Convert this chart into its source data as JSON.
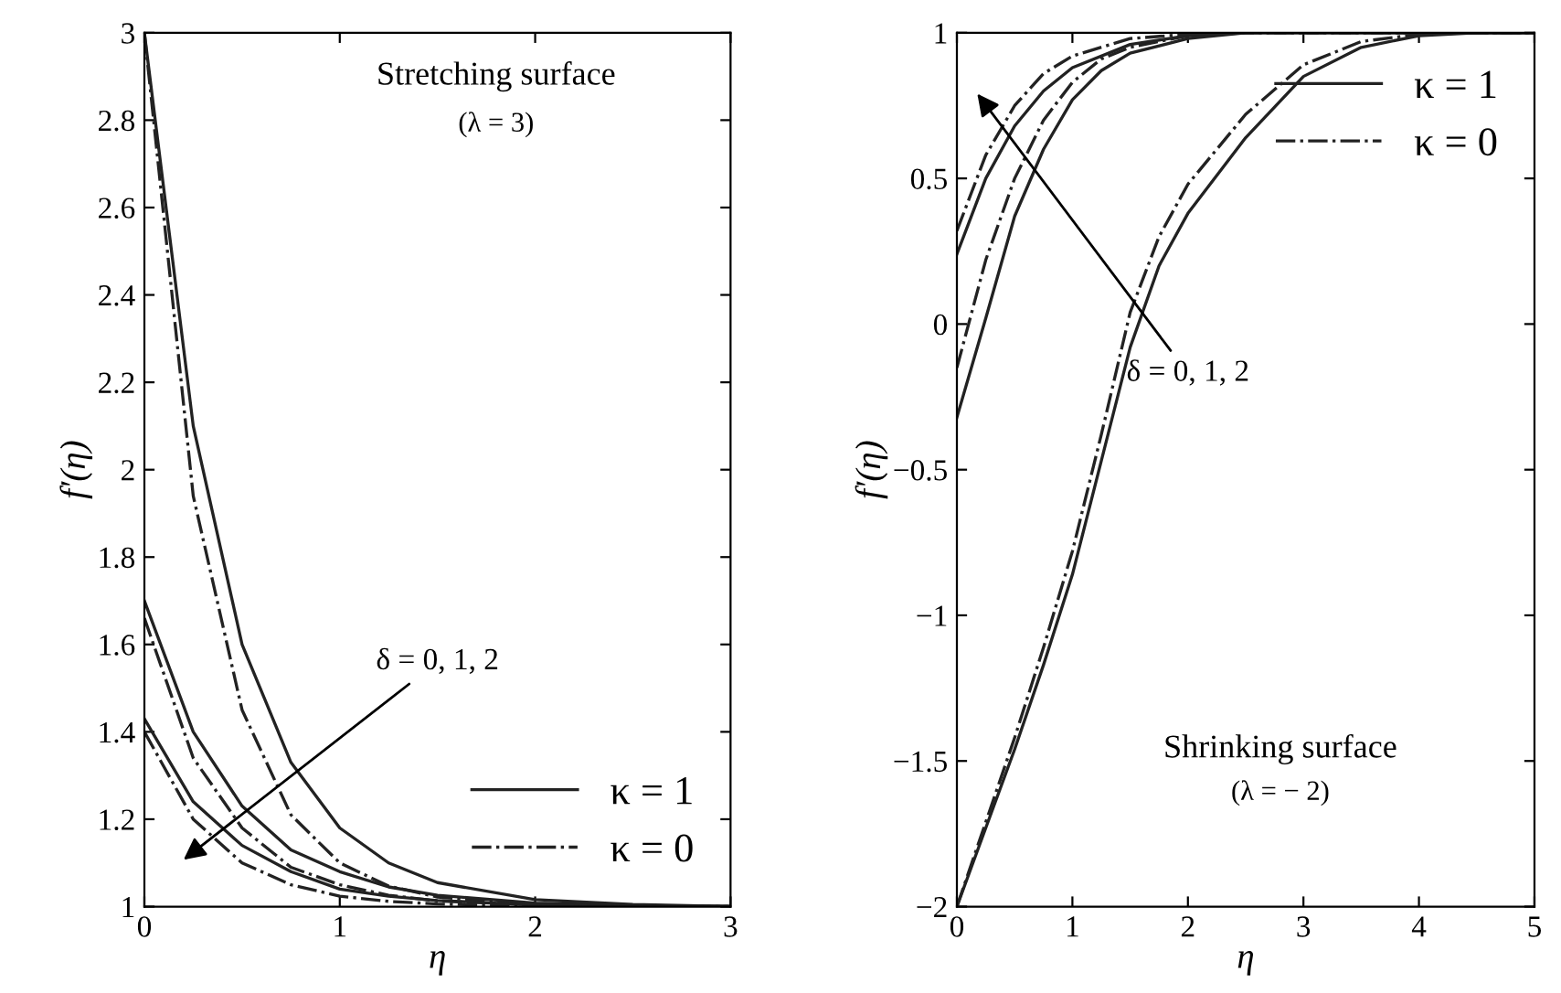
{
  "chart_data": [
    {
      "type": "line",
      "xlabel": "η",
      "ylabel": "f′(η)",
      "xlim": [
        0,
        3
      ],
      "ylim": [
        1,
        3
      ],
      "xticks": [
        0,
        1,
        2,
        3
      ],
      "yticks": [
        1,
        1.2,
        1.4,
        1.6,
        1.8,
        2,
        2.2,
        2.4,
        2.6,
        2.8,
        3
      ],
      "grid": false,
      "legend": "bottom right",
      "marker": "none",
      "annotations": [
        "Stretching surface",
        "(λ = 3)",
        "δ = 0, 1, 2"
      ],
      "series": [
        {
          "name": "κ = 1",
          "color": "#222222",
          "line_style": "solid",
          "x": [
            0,
            0.25,
            0.5,
            0.75,
            1,
            1.25,
            1.5,
            2,
            2.5,
            3
          ],
          "values": [
            3.0,
            2.1,
            1.6,
            1.33,
            1.18,
            1.1,
            1.055,
            1.016,
            1.005,
            1.0
          ]
        },
        {
          "name": "κ = 0",
          "color": "#222222",
          "line_style": "dashdot",
          "x": [
            0,
            0.25,
            0.5,
            0.75,
            1,
            1.25,
            1.5,
            2,
            2.5,
            3
          ],
          "values": [
            3.0,
            1.94,
            1.45,
            1.21,
            1.1,
            1.047,
            1.022,
            1.005,
            1.001,
            1.0
          ]
        },
        {
          "color": "#222222",
          "line_style": "solid",
          "x": [
            0,
            0.25,
            0.5,
            0.75,
            1,
            1.25,
            1.5,
            2,
            2.5,
            3
          ],
          "values": [
            1.7,
            1.4,
            1.23,
            1.13,
            1.08,
            1.045,
            1.026,
            1.008,
            1.003,
            1.0
          ]
        },
        {
          "color": "#222222",
          "line_style": "dashdot",
          "x": [
            0,
            0.25,
            0.5,
            0.75,
            1,
            1.25,
            1.5,
            2,
            2.5,
            3
          ],
          "values": [
            1.66,
            1.34,
            1.18,
            1.09,
            1.05,
            1.026,
            1.013,
            1.004,
            1.001,
            1.0
          ]
        },
        {
          "color": "#222222",
          "line_style": "solid",
          "x": [
            0,
            0.25,
            0.5,
            0.75,
            1,
            1.25,
            1.5,
            2,
            2.5,
            3
          ],
          "values": [
            1.43,
            1.24,
            1.14,
            1.08,
            1.04,
            1.024,
            1.014,
            1.004,
            1.001,
            1.0
          ]
        },
        {
          "color": "#222222",
          "line_style": "dashdot",
          "x": [
            0,
            0.25,
            0.5,
            0.75,
            1,
            1.25,
            1.5,
            2,
            2.5,
            3
          ],
          "values": [
            1.4,
            1.2,
            1.1,
            1.05,
            1.024,
            1.012,
            1.006,
            1.001,
            1.0,
            1.0
          ]
        }
      ]
    },
    {
      "type": "line",
      "xlabel": "η",
      "ylabel": "f′(η)",
      "xlim": [
        0,
        5
      ],
      "ylim": [
        -2,
        1
      ],
      "xticks": [
        0,
        1,
        2,
        3,
        4,
        5
      ],
      "yticks": [
        {
          "value": -2,
          "label": "−2"
        },
        {
          "value": -1.5,
          "label": "−1.5"
        },
        {
          "value": -1,
          "label": "−1"
        },
        {
          "value": -0.5,
          "label": "−0.5"
        },
        0,
        0.5,
        1
      ],
      "grid": false,
      "legend": "top right",
      "marker": "none",
      "annotations": [
        "Shrinking surface",
        "(λ = − 2)",
        "δ = 0, 1, 2"
      ],
      "series": [
        {
          "name": "κ = 1",
          "color": "#222222",
          "line_style": "solid",
          "x": [
            0,
            0.25,
            0.5,
            0.75,
            1,
            1.25,
            1.5,
            1.75,
            2,
            2.5,
            3,
            3.5,
            4,
            4.5,
            5
          ],
          "values": [
            -2,
            -1.73,
            -1.46,
            -1.17,
            -0.86,
            -0.47,
            -0.08,
            0.2,
            0.38,
            0.64,
            0.85,
            0.95,
            0.99,
            1.0,
            1.0
          ]
        },
        {
          "name": "κ = 0",
          "color": "#222222",
          "line_style": "dashdot",
          "x": [
            0,
            0.25,
            0.5,
            0.75,
            1,
            1.25,
            1.5,
            1.75,
            2,
            2.5,
            3,
            3.5,
            4,
            4.5,
            5
          ],
          "values": [
            -2,
            -1.71,
            -1.42,
            -1.11,
            -0.78,
            -0.38,
            0.04,
            0.3,
            0.48,
            0.72,
            0.89,
            0.97,
            0.995,
            1.0,
            1.0
          ]
        },
        {
          "color": "#222222",
          "line_style": "solid",
          "x": [
            0,
            0.25,
            0.5,
            0.75,
            1,
            1.25,
            1.5,
            2,
            2.5,
            3,
            5
          ],
          "values": [
            -0.32,
            0.02,
            0.37,
            0.6,
            0.77,
            0.87,
            0.93,
            0.98,
            1.0,
            1.0,
            1.0
          ]
        },
        {
          "color": "#222222",
          "line_style": "dashdot",
          "x": [
            0,
            0.25,
            0.5,
            0.75,
            1,
            1.25,
            1.5,
            2,
            2.5,
            3,
            5
          ],
          "values": [
            -0.15,
            0.22,
            0.5,
            0.7,
            0.83,
            0.91,
            0.95,
            0.99,
            1.0,
            1.0,
            1.0
          ]
        },
        {
          "color": "#222222",
          "line_style": "solid",
          "x": [
            0,
            0.25,
            0.5,
            0.75,
            1,
            1.5,
            2,
            2.5,
            3,
            5
          ],
          "values": [
            0.24,
            0.5,
            0.68,
            0.8,
            0.88,
            0.96,
            0.99,
            1.0,
            1.0,
            1.0
          ]
        },
        {
          "color": "#222222",
          "line_style": "dashdot",
          "x": [
            0,
            0.25,
            0.5,
            0.75,
            1,
            1.5,
            2,
            2.5,
            3,
            5
          ],
          "values": [
            0.32,
            0.58,
            0.75,
            0.86,
            0.92,
            0.98,
            0.995,
            1.0,
            1.0,
            1.0
          ]
        }
      ]
    }
  ]
}
